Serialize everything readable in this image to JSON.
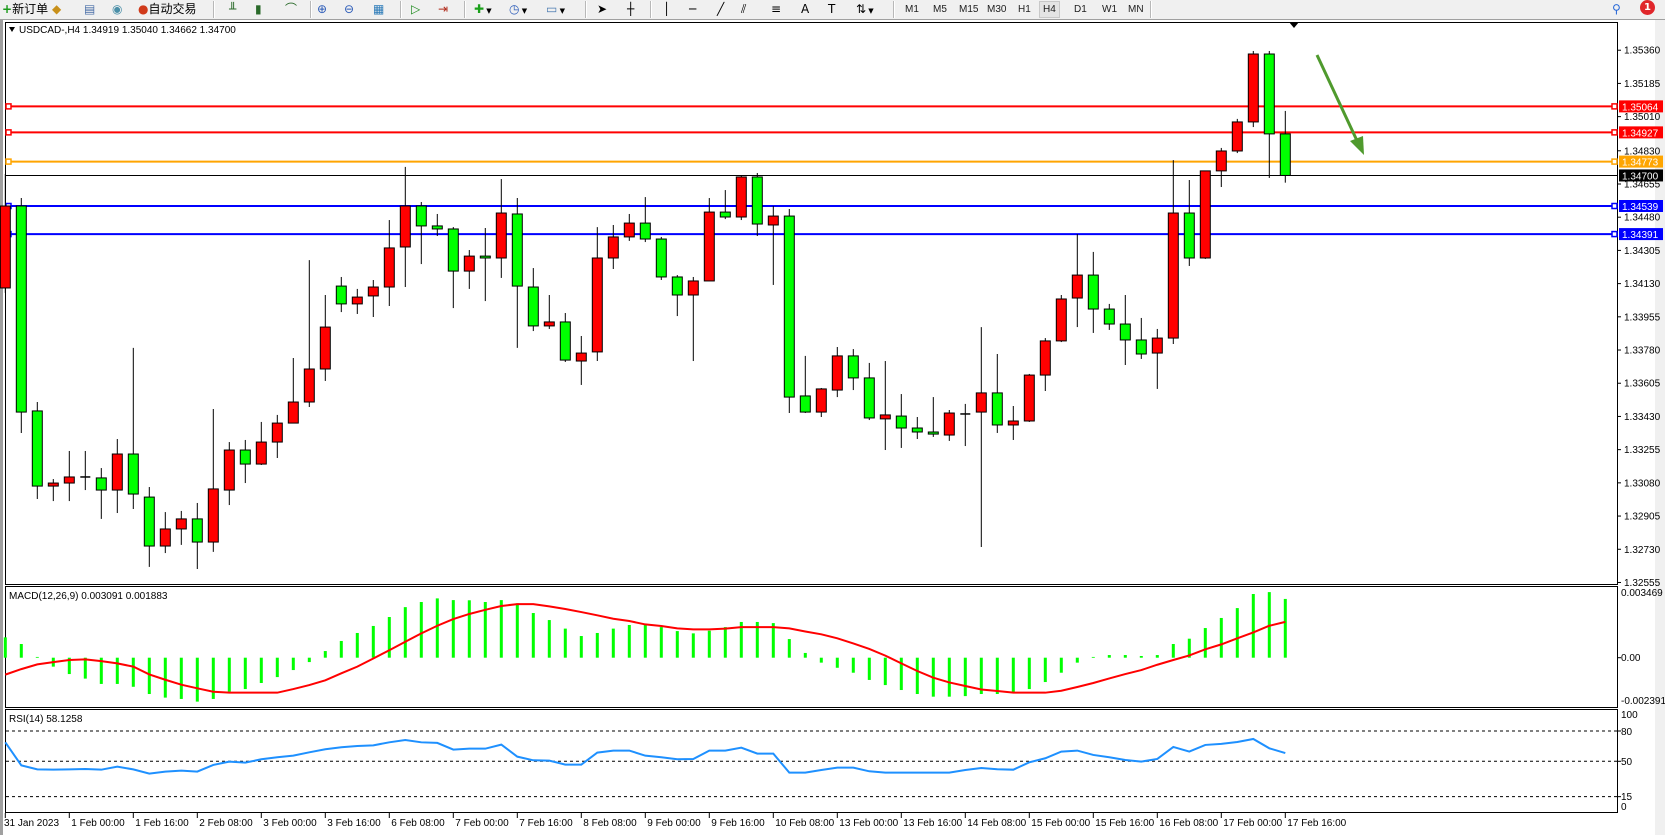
{
  "toolbar": {
    "new_order_label": "新订单",
    "auto_trading_label": "自动交易",
    "timeframes": [
      "M1",
      "M5",
      "M15",
      "M30",
      "H1",
      "H4",
      "D1",
      "W1",
      "MN"
    ],
    "active_timeframe": "H4",
    "notification_count": "1",
    "icons": [
      "new-order-icon",
      "metaeditor-icon",
      "market-watch-icon",
      "signals-icon",
      "auto-trading-icon",
      "bar-chart-icon",
      "candlestick-icon",
      "line-chart-icon",
      "zoom-in-icon",
      "zoom-out-icon",
      "tile-windows-icon",
      "auto-scroll-icon",
      "chart-shift-icon",
      "indicators-icon",
      "periods-icon",
      "templates-icon",
      "cursor-icon",
      "crosshair-icon",
      "vertical-line-icon",
      "horizontal-line-icon",
      "trendline-icon",
      "equidistant-channel-icon",
      "fibonacci-icon",
      "text-icon",
      "text-label-icon",
      "arrows-icon",
      "search-icon",
      "notification-icon"
    ]
  },
  "main": {
    "legend": "USDCAD-,H4  1.34919 1.35040 1.34662 1.34700"
  },
  "macd": {
    "label": "MACD(12,26,9) 0.003091 0.001883",
    "axis_labels": [
      "0.003469",
      "0.00",
      "-0.002391"
    ]
  },
  "rsi": {
    "label": "RSI(14) 58.1258",
    "axis_labels": [
      "100",
      "80",
      "50",
      "15",
      "0"
    ]
  },
  "colors": {
    "bull_candle": "#ff0000",
    "bear_candle": "#00ff00",
    "macd_histogram": "#00ff00",
    "macd_signal": "#ff0000",
    "rsi_line": "#1e90ff",
    "annotation_arrow": "#4f9a2d"
  },
  "chart_data": {
    "type": "candlestick",
    "symbol": "USDCAD-",
    "timeframe": "H4",
    "ohlc_format": [
      "open",
      "high",
      "low",
      "close"
    ],
    "candles": [
      [
        1.34107,
        1.34708,
        1.34081,
        1.34539
      ],
      [
        1.34539,
        1.34581,
        1.33343,
        1.33453
      ],
      [
        1.33459,
        1.33506,
        1.32995,
        1.33063
      ],
      [
        1.33063,
        1.331,
        1.32984,
        1.33079
      ],
      [
        1.33079,
        1.33248,
        1.32984,
        1.33111
      ],
      [
        1.33111,
        1.33248,
        1.33042,
        1.33111
      ],
      [
        1.33106,
        1.33158,
        1.3289,
        1.33042
      ],
      [
        1.33042,
        1.33311,
        1.32921,
        1.33232
      ],
      [
        1.33232,
        1.33791,
        1.32942,
        1.33021
      ],
      [
        1.33005,
        1.33058,
        1.32637,
        1.32747
      ],
      [
        1.32747,
        1.32926,
        1.3271,
        1.32837
      ],
      [
        1.32837,
        1.32932,
        1.32753,
        1.3289
      ],
      [
        1.3289,
        1.32974,
        1.32626,
        1.32768
      ],
      [
        1.32768,
        1.33469,
        1.32716,
        1.33048
      ],
      [
        1.33042,
        1.33295,
        1.32963,
        1.33253
      ],
      [
        1.33253,
        1.33306,
        1.33079,
        1.33179
      ],
      [
        1.33179,
        1.33401,
        1.33174,
        1.33295
      ],
      [
        1.33295,
        1.33438,
        1.33211,
        1.33395
      ],
      [
        1.33395,
        1.33738,
        1.33395,
        1.33506
      ],
      [
        1.33506,
        1.34254,
        1.3348,
        1.3368
      ],
      [
        1.3368,
        1.3407,
        1.33617,
        1.33901
      ],
      [
        1.34117,
        1.34165,
        1.3398,
        1.34023
      ],
      [
        1.34023,
        1.34102,
        1.3397,
        1.34059
      ],
      [
        1.34065,
        1.34149,
        1.33954,
        1.34112
      ],
      [
        1.34112,
        1.34465,
        1.34012,
        1.34318
      ],
      [
        1.34323,
        1.34745,
        1.34112,
        1.34539
      ],
      [
        1.34539,
        1.3456,
        1.34233,
        1.34434
      ],
      [
        1.34434,
        1.34497,
        1.34381,
        1.34418
      ],
      [
        1.34418,
        1.34428,
        1.34001,
        1.34196
      ],
      [
        1.34196,
        1.34307,
        1.34102,
        1.34275
      ],
      [
        1.34275,
        1.34423,
        1.34038,
        1.34265
      ],
      [
        1.34265,
        1.34681,
        1.3416,
        1.34502
      ],
      [
        1.34497,
        1.34581,
        1.33791,
        1.34117
      ],
      [
        1.34112,
        1.34212,
        1.3388,
        1.33907
      ],
      [
        1.33907,
        1.3407,
        1.33891,
        1.33928
      ],
      [
        1.33928,
        1.33975,
        1.33717,
        1.33727
      ],
      [
        1.33722,
        1.33854,
        1.33596,
        1.33764
      ],
      [
        1.3377,
        1.34428,
        1.33722,
        1.34265
      ],
      [
        1.34265,
        1.34439,
        1.34207,
        1.34376
      ],
      [
        1.34376,
        1.34497,
        1.34355,
        1.34449
      ],
      [
        1.34449,
        1.34586,
        1.34349,
        1.34365
      ],
      [
        1.34365,
        1.34376,
        1.34149,
        1.34165
      ],
      [
        1.34165,
        1.34175,
        1.33959,
        1.3407
      ],
      [
        1.3407,
        1.34165,
        1.33722,
        1.34144
      ],
      [
        1.34144,
        1.34581,
        1.34144,
        1.34507
      ],
      [
        1.34507,
        1.34623,
        1.3447,
        1.34481
      ],
      [
        1.34481,
        1.34702,
        1.34465,
        1.34692
      ],
      [
        1.34692,
        1.34713,
        1.34381,
        1.34444
      ],
      [
        1.34439,
        1.34539,
        1.34123,
        1.34486
      ],
      [
        1.34486,
        1.34523,
        1.33448,
        1.33532
      ],
      [
        1.33538,
        1.33749,
        1.33448,
        1.33453
      ],
      [
        1.33453,
        1.3358,
        1.33427,
        1.33575
      ],
      [
        1.33569,
        1.33796,
        1.33532,
        1.33749
      ],
      [
        1.33749,
        1.33785,
        1.33569,
        1.33633
      ],
      [
        1.33633,
        1.33712,
        1.33411,
        1.33422
      ],
      [
        1.33417,
        1.33722,
        1.33253,
        1.33438
      ],
      [
        1.33432,
        1.33548,
        1.33264,
        1.33369
      ],
      [
        1.33369,
        1.33427,
        1.33311,
        1.33348
      ],
      [
        1.33348,
        1.33532,
        1.33322,
        1.33337
      ],
      [
        1.33332,
        1.33464,
        1.33301,
        1.33448
      ],
      [
        1.33443,
        1.33496,
        1.33274,
        1.33443
      ],
      [
        1.33453,
        1.33901,
        1.32742,
        1.33554
      ],
      [
        1.33554,
        1.33759,
        1.33343,
        1.33385
      ],
      [
        1.33385,
        1.33485,
        1.33306,
        1.33406
      ],
      [
        1.33406,
        1.33654,
        1.33401,
        1.33648
      ],
      [
        1.33648,
        1.33843,
        1.33564,
        1.33828
      ],
      [
        1.33828,
        1.3407,
        1.33822,
        1.34049
      ],
      [
        1.34054,
        1.34391,
        1.33901,
        1.34175
      ],
      [
        1.34175,
        1.34297,
        1.3387,
        1.33996
      ],
      [
        1.33996,
        1.34023,
        1.33886,
        1.33917
      ],
      [
        1.33917,
        1.3407,
        1.33701,
        1.33833
      ],
      [
        1.33833,
        1.33949,
        1.33733,
        1.33759
      ],
      [
        1.33764,
        1.33891,
        1.33575,
        1.33843
      ],
      [
        1.33843,
        1.34781,
        1.33812,
        1.34502
      ],
      [
        1.34502,
        1.34676,
        1.34223,
        1.34265
      ],
      [
        1.34265,
        1.34724,
        1.3426,
        1.34724
      ],
      [
        1.34724,
        1.34845,
        1.34639,
        1.34829
      ],
      [
        1.34829,
        1.34998,
        1.34818,
        1.34982
      ],
      [
        1.34982,
        1.35356,
        1.34955,
        1.3534
      ],
      [
        1.3534,
        1.35356,
        1.34687,
        1.34919
      ],
      [
        1.34919,
        1.3504,
        1.34662,
        1.347
      ]
    ],
    "time_labels": [
      "31 Jan 2023",
      "1 Feb 00:00",
      "1 Feb 16:00",
      "2 Feb 08:00",
      "3 Feb 00:00",
      "3 Feb 16:00",
      "6 Feb 08:00",
      "7 Feb 00:00",
      "7 Feb 16:00",
      "8 Feb 08:00",
      "9 Feb 00:00",
      "9 Feb 16:00",
      "10 Feb 08:00",
      "13 Feb 00:00",
      "13 Feb 16:00",
      "14 Feb 08:00",
      "15 Feb 00:00",
      "15 Feb 16:00",
      "16 Feb 08:00",
      "17 Feb 00:00",
      "17 Feb 16:00"
    ],
    "time_label_every_n_candles": 4,
    "y_ticks": [
      "1.35360",
      "1.35185",
      "1.35010",
      "1.34830",
      "1.34655",
      "1.34480",
      "1.34305",
      "1.34130",
      "1.33955",
      "1.33780",
      "1.33605",
      "1.33430",
      "1.33255",
      "1.33080",
      "1.32905",
      "1.32730",
      "1.32555"
    ],
    "ylim": [
      1.32552,
      1.35514
    ],
    "current_price": {
      "value": 1.347,
      "label": "1.34700",
      "color": "#000000"
    },
    "levels": [
      {
        "value": 1.35064,
        "label": "1.35064",
        "color": "#ff0000"
      },
      {
        "value": 1.34927,
        "label": "1.34927",
        "color": "#ff0000"
      },
      {
        "value": 1.34773,
        "label": "1.34773",
        "color": "#ffa500"
      },
      {
        "value": 1.34539,
        "label": "1.34539",
        "color": "#0000ff"
      },
      {
        "value": 1.34391,
        "label": "1.34391",
        "color": "#0000ff"
      }
    ],
    "macd": {
      "ylim": [
        -0.002391,
        0.003469
      ],
      "main": [
        0.00107,
        0.00072,
        4e-05,
        -0.00047,
        -0.00086,
        -0.0011,
        -0.00138,
        -0.00138,
        -0.00153,
        -0.00191,
        -0.0021,
        -0.00217,
        -0.00231,
        -0.00217,
        -0.00179,
        -0.00165,
        -0.00133,
        -0.00102,
        -0.00065,
        -0.00023,
        0.00035,
        0.00088,
        0.0013,
        0.00167,
        0.00214,
        0.00266,
        0.00293,
        0.00312,
        0.00303,
        0.00302,
        0.00293,
        0.00303,
        0.00286,
        0.00235,
        0.00198,
        0.00153,
        0.00114,
        0.0013,
        0.00153,
        0.00172,
        0.00172,
        0.00161,
        0.0014,
        0.00128,
        0.00142,
        0.00161,
        0.00188,
        0.00188,
        0.00182,
        0.00098,
        0.00025,
        -0.00026,
        -0.00053,
        -0.00079,
        -0.00117,
        -0.00144,
        -0.0017,
        -0.00191,
        -0.00205,
        -0.00205,
        -0.00202,
        -0.00191,
        -0.00191,
        -0.00181,
        -0.00165,
        -0.00128,
        -0.00079,
        -0.00026,
        4e-05,
        0.00014,
        0.00014,
        9e-05,
        0.00014,
        0.00072,
        0.001,
        0.00156,
        0.00209,
        0.00261,
        0.00335,
        0.00345,
        0.003091
      ],
      "signal": [
        -0.00089,
        -0.0006,
        -0.00035,
        -0.00023,
        -0.00012,
        -9e-05,
        -0.00018,
        -0.0003,
        -0.00047,
        -0.00088,
        -0.00116,
        -0.00142,
        -0.00161,
        -0.00179,
        -0.00184,
        -0.00184,
        -0.00184,
        -0.00184,
        -0.00165,
        -0.00144,
        -0.00119,
        -0.00082,
        -0.00047,
        -4e-05,
        0.00039,
        0.00084,
        0.00128,
        0.00168,
        0.00203,
        0.0023,
        0.00252,
        0.00272,
        0.00282,
        0.00282,
        0.0027,
        0.00256,
        0.0024,
        0.00223,
        0.00205,
        0.00193,
        0.00175,
        0.00167,
        0.00154,
        0.00149,
        0.00149,
        0.00153,
        0.00161,
        0.00161,
        0.00161,
        0.00154,
        0.00138,
        0.00123,
        0.00102,
        0.00075,
        0.00046,
        0.00011,
        -0.0003,
        -0.0007,
        -0.00105,
        -0.0013,
        -0.00149,
        -0.00167,
        -0.00175,
        -0.00184,
        -0.00184,
        -0.00184,
        -0.00174,
        -0.00154,
        -0.00133,
        -0.00109,
        -0.00086,
        -0.00065,
        -0.00037,
        -0.00012,
        0.00012,
        0.00044,
        0.0007,
        0.00102,
        0.00133,
        0.00168,
        0.001883
      ]
    },
    "rsi": {
      "period": 14,
      "ylim": [
        0,
        100
      ],
      "levels": [
        80,
        50,
        15
      ],
      "values": [
        68.8,
        46,
        42,
        41.7,
        42,
        42.4,
        41.7,
        44.7,
        42,
        37.8,
        39.8,
        40.8,
        39.8,
        46.4,
        49.7,
        48.7,
        52,
        54,
        55.6,
        58.9,
        61.9,
        63.9,
        65.2,
        65.8,
        68.8,
        71.1,
        68.8,
        68.2,
        61.6,
        62.5,
        62.5,
        66.5,
        54.6,
        51,
        50.7,
        46.7,
        46.7,
        58.6,
        60.6,
        60.6,
        55.6,
        54,
        52,
        52.3,
        60.6,
        60.6,
        63.5,
        57.6,
        57.6,
        38.8,
        38.8,
        41.4,
        43.7,
        43.7,
        40.1,
        38.8,
        38.8,
        38.8,
        38.8,
        38.8,
        41.4,
        43.4,
        42.1,
        41.7,
        49,
        53,
        59.6,
        60.6,
        56.3,
        54,
        51.3,
        49.7,
        52.3,
        64.2,
        59.6,
        66.2,
        67.2,
        69.1,
        72.1,
        62.9,
        58.1258
      ]
    },
    "grid": false
  }
}
